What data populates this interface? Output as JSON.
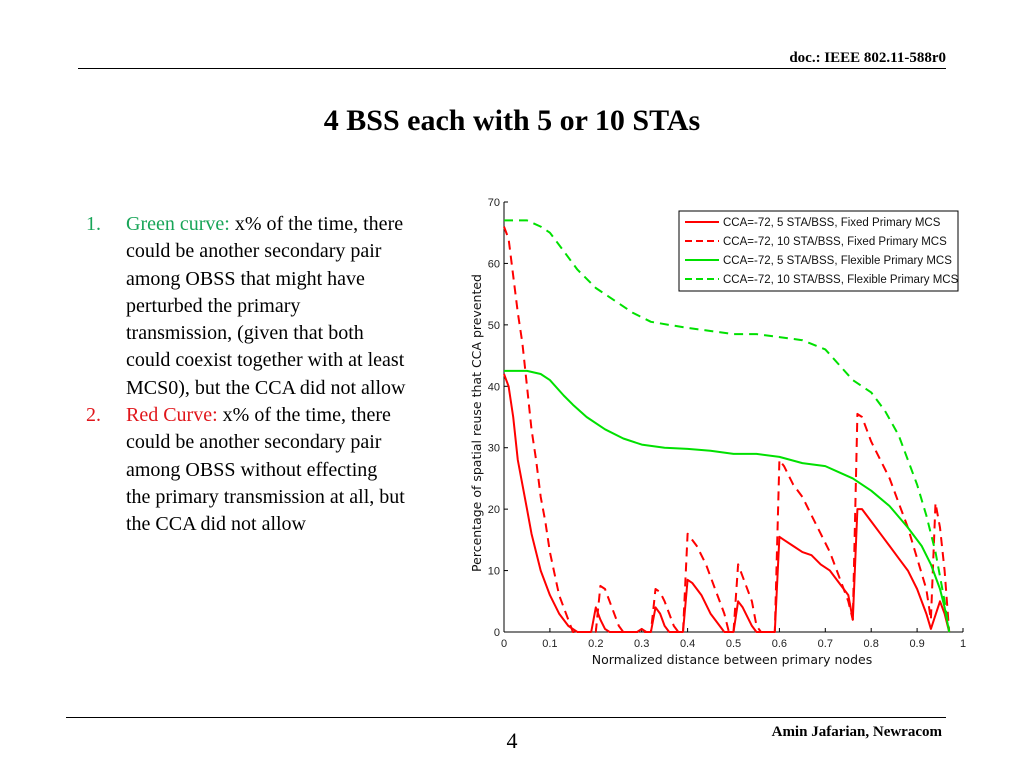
{
  "header": {
    "doc_id": "doc.: IEEE 802.11-588r0"
  },
  "slide": {
    "title": "4 BSS each with 5 or 10 STAs"
  },
  "notes": [
    {
      "number": "1.",
      "highlight": "Green curve:",
      "text": " x% of the time, there could be another secondary pair among OBSS that might have perturbed the primary transmission, (given that both could coexist together with at least MCS0), but the CCA did not allow",
      "highlight_color": "#18a558"
    },
    {
      "number": "2.",
      "highlight": "Red Curve:",
      "text": " x% of the time, there could be another secondary pair among OBSS without  effecting the primary transmission at all, but the CCA did not allow",
      "highlight_color": "#e0161b"
    }
  ],
  "footer": {
    "page_number": "4",
    "author": "Amin Jafarian, Newracom"
  },
  "chart_data": {
    "type": "line",
    "title": "",
    "xlabel": "Normalized distance between primary nodes",
    "ylabel": "Percentage of spatial reuse that CCA prevented",
    "xlim": [
      0,
      1
    ],
    "ylim": [
      0,
      70
    ],
    "x_ticks": [
      "0",
      "0.1",
      "0.2",
      "0.3",
      "0.4",
      "0.5",
      "0.6",
      "0.7",
      "0.8",
      "0.9",
      "1"
    ],
    "y_ticks": [
      "0",
      "10",
      "20",
      "30",
      "40",
      "50",
      "60",
      "70"
    ],
    "grid": false,
    "legend_position": "top-right",
    "series": [
      {
        "name": "CCA=-72, 5 STA/BSS, Fixed Primary MCS",
        "color": "#ff0000",
        "dash": "solid",
        "points": [
          [
            0,
            42
          ],
          [
            0.01,
            40
          ],
          [
            0.02,
            35
          ],
          [
            0.03,
            28
          ],
          [
            0.04,
            24
          ],
          [
            0.05,
            20
          ],
          [
            0.06,
            16
          ],
          [
            0.08,
            10
          ],
          [
            0.1,
            6
          ],
          [
            0.12,
            3
          ],
          [
            0.14,
            1
          ],
          [
            0.16,
            0
          ],
          [
            0.19,
            0
          ],
          [
            0.2,
            4
          ],
          [
            0.21,
            2
          ],
          [
            0.22,
            0.5
          ],
          [
            0.23,
            0
          ],
          [
            0.29,
            0
          ],
          [
            0.3,
            0.5
          ],
          [
            0.31,
            0
          ],
          [
            0.32,
            0
          ],
          [
            0.33,
            4
          ],
          [
            0.34,
            3
          ],
          [
            0.35,
            1
          ],
          [
            0.36,
            0
          ],
          [
            0.39,
            0
          ],
          [
            0.4,
            8.5
          ],
          [
            0.41,
            8
          ],
          [
            0.43,
            6
          ],
          [
            0.45,
            3
          ],
          [
            0.47,
            1
          ],
          [
            0.48,
            0
          ],
          [
            0.5,
            0
          ],
          [
            0.51,
            5
          ],
          [
            0.52,
            4
          ],
          [
            0.54,
            1
          ],
          [
            0.55,
            0
          ],
          [
            0.59,
            0
          ],
          [
            0.6,
            15.5
          ],
          [
            0.61,
            15
          ],
          [
            0.63,
            14
          ],
          [
            0.65,
            13
          ],
          [
            0.67,
            12.5
          ],
          [
            0.69,
            11
          ],
          [
            0.71,
            10
          ],
          [
            0.73,
            8
          ],
          [
            0.75,
            6
          ],
          [
            0.76,
            2
          ],
          [
            0.77,
            20
          ],
          [
            0.78,
            20
          ],
          [
            0.8,
            18
          ],
          [
            0.82,
            16
          ],
          [
            0.84,
            14
          ],
          [
            0.86,
            12
          ],
          [
            0.88,
            10
          ],
          [
            0.9,
            7
          ],
          [
            0.92,
            3
          ],
          [
            0.93,
            0.5
          ],
          [
            0.95,
            5
          ],
          [
            0.96,
            3
          ],
          [
            0.97,
            0
          ]
        ]
      },
      {
        "name": "CCA=-72, 10 STA/BSS, Fixed Primary MCS",
        "color": "#ff0000",
        "dash": "dashed",
        "points": [
          [
            0,
            66
          ],
          [
            0.01,
            64
          ],
          [
            0.02,
            58
          ],
          [
            0.03,
            52
          ],
          [
            0.04,
            47
          ],
          [
            0.05,
            40
          ],
          [
            0.06,
            33
          ],
          [
            0.07,
            28
          ],
          [
            0.08,
            22
          ],
          [
            0.09,
            18
          ],
          [
            0.1,
            13
          ],
          [
            0.12,
            6
          ],
          [
            0.14,
            2
          ],
          [
            0.15,
            0
          ],
          [
            0.2,
            0
          ],
          [
            0.21,
            7.5
          ],
          [
            0.22,
            7
          ],
          [
            0.23,
            5
          ],
          [
            0.25,
            1
          ],
          [
            0.26,
            0
          ],
          [
            0.32,
            0
          ],
          [
            0.33,
            7
          ],
          [
            0.34,
            6.5
          ],
          [
            0.35,
            5
          ],
          [
            0.37,
            1
          ],
          [
            0.38,
            0
          ],
          [
            0.39,
            0
          ],
          [
            0.4,
            16
          ],
          [
            0.41,
            15
          ],
          [
            0.42,
            14
          ],
          [
            0.44,
            11
          ],
          [
            0.46,
            7
          ],
          [
            0.48,
            3
          ],
          [
            0.49,
            0
          ],
          [
            0.5,
            0
          ],
          [
            0.51,
            11
          ],
          [
            0.52,
            9
          ],
          [
            0.54,
            5
          ],
          [
            0.55,
            1
          ],
          [
            0.56,
            0
          ],
          [
            0.59,
            0
          ],
          [
            0.6,
            28
          ],
          [
            0.61,
            27
          ],
          [
            0.63,
            24
          ],
          [
            0.65,
            22
          ],
          [
            0.67,
            19
          ],
          [
            0.69,
            16
          ],
          [
            0.71,
            13
          ],
          [
            0.73,
            9
          ],
          [
            0.75,
            5
          ],
          [
            0.76,
            2
          ],
          [
            0.77,
            35.5
          ],
          [
            0.78,
            35
          ],
          [
            0.79,
            33
          ],
          [
            0.8,
            31
          ],
          [
            0.82,
            28
          ],
          [
            0.84,
            25
          ],
          [
            0.86,
            21
          ],
          [
            0.88,
            17
          ],
          [
            0.9,
            12
          ],
          [
            0.92,
            7
          ],
          [
            0.93,
            2
          ],
          [
            0.94,
            21
          ],
          [
            0.95,
            17
          ],
          [
            0.96,
            10
          ],
          [
            0.97,
            0
          ]
        ]
      },
      {
        "name": "CCA=-72, 5 STA/BSS, Flexible Primary MCS",
        "color": "#00e000",
        "dash": "solid",
        "points": [
          [
            0,
            42.5
          ],
          [
            0.02,
            42.5
          ],
          [
            0.05,
            42.5
          ],
          [
            0.08,
            42
          ],
          [
            0.1,
            41
          ],
          [
            0.13,
            38.5
          ],
          [
            0.15,
            37
          ],
          [
            0.18,
            35
          ],
          [
            0.22,
            33
          ],
          [
            0.26,
            31.5
          ],
          [
            0.3,
            30.5
          ],
          [
            0.35,
            30
          ],
          [
            0.4,
            29.8
          ],
          [
            0.45,
            29.5
          ],
          [
            0.5,
            29
          ],
          [
            0.55,
            29
          ],
          [
            0.6,
            28.5
          ],
          [
            0.65,
            27.5
          ],
          [
            0.7,
            27
          ],
          [
            0.73,
            26
          ],
          [
            0.76,
            25
          ],
          [
            0.8,
            23
          ],
          [
            0.84,
            20.5
          ],
          [
            0.88,
            17
          ],
          [
            0.91,
            14
          ],
          [
            0.93,
            11
          ],
          [
            0.95,
            7
          ],
          [
            0.96,
            4
          ],
          [
            0.97,
            0
          ]
        ]
      },
      {
        "name": "CCA=-72, 10 STA/BSS, Flexible Primary MCS",
        "color": "#00e000",
        "dash": "dashed",
        "points": [
          [
            0,
            67
          ],
          [
            0.02,
            67
          ],
          [
            0.05,
            67
          ],
          [
            0.08,
            66
          ],
          [
            0.1,
            65
          ],
          [
            0.13,
            62
          ],
          [
            0.16,
            59
          ],
          [
            0.2,
            56
          ],
          [
            0.24,
            54
          ],
          [
            0.28,
            52
          ],
          [
            0.32,
            50.5
          ],
          [
            0.36,
            50
          ],
          [
            0.4,
            49.5
          ],
          [
            0.45,
            49
          ],
          [
            0.5,
            48.5
          ],
          [
            0.55,
            48.5
          ],
          [
            0.6,
            48
          ],
          [
            0.65,
            47.5
          ],
          [
            0.7,
            46
          ],
          [
            0.73,
            43.5
          ],
          [
            0.76,
            41
          ],
          [
            0.8,
            39
          ],
          [
            0.83,
            36
          ],
          [
            0.86,
            32
          ],
          [
            0.88,
            28
          ],
          [
            0.9,
            24
          ],
          [
            0.92,
            19
          ],
          [
            0.94,
            13
          ],
          [
            0.96,
            5
          ],
          [
            0.97,
            0
          ]
        ]
      }
    ]
  }
}
